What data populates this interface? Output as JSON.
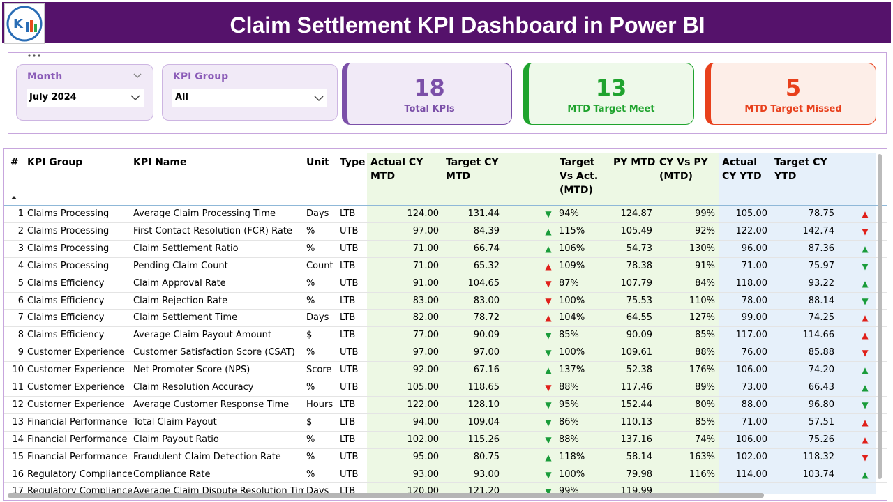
{
  "header": {
    "title": "Claim Settlement KPI Dashboard in Power BI"
  },
  "slicers": [
    {
      "label": "Month",
      "value": "July 2024"
    },
    {
      "label": "KPI Group",
      "value": "All"
    }
  ],
  "cards": [
    {
      "value": "18",
      "label": "Total KPIs",
      "color": "#7b4fa8"
    },
    {
      "value": "13",
      "label": "MTD Target Meet",
      "color": "#1fa32e"
    },
    {
      "value": "5",
      "label": "MTD Target Missed",
      "color": "#e8401c"
    }
  ],
  "table": {
    "columns": [
      "#",
      "KPI Group",
      "KPI Name",
      "Unit",
      "Type",
      "Actual CY MTD",
      "Target CY MTD",
      "Target Vs Act. (MTD)",
      "PY MTD",
      "CY Vs PY (MTD)",
      "Actual CY YTD",
      "Target CY YTD"
    ],
    "rows": [
      [
        "1",
        "Claims Processing",
        "Average Claim Processing Time",
        "Days",
        "LTB",
        "124.00",
        "131.44",
        "▼",
        "94%",
        "124.87",
        "99%",
        "105.00",
        "78.75",
        "▲"
      ],
      [
        "2",
        "Claims Processing",
        "First Contact Resolution (FCR) Rate",
        "%",
        "UTB",
        "97.00",
        "84.39",
        "▲",
        "115%",
        "105.49",
        "92%",
        "122.00",
        "142.74",
        "▼"
      ],
      [
        "3",
        "Claims Processing",
        "Claim Settlement Ratio",
        "%",
        "UTB",
        "71.00",
        "66.74",
        "▲",
        "106%",
        "54.73",
        "130%",
        "96.00",
        "87.36",
        "▲"
      ],
      [
        "4",
        "Claims Processing",
        "Pending Claim Count",
        "Count",
        "LTB",
        "71.00",
        "65.32",
        "▲",
        "109%",
        "78.38",
        "91%",
        "71.00",
        "75.97",
        "▼"
      ],
      [
        "5",
        "Claims Efficiency",
        "Claim Approval Rate",
        "%",
        "UTB",
        "91.00",
        "104.65",
        "▼",
        "87%",
        "107.79",
        "84%",
        "118.00",
        "93.22",
        "▲"
      ],
      [
        "6",
        "Claims Efficiency",
        "Claim Rejection Rate",
        "%",
        "LTB",
        "83.00",
        "83.00",
        "▼",
        "100%",
        "75.53",
        "110%",
        "78.00",
        "88.14",
        "▼"
      ],
      [
        "7",
        "Claims Efficiency",
        "Claim Settlement Time",
        "Days",
        "LTB",
        "82.00",
        "78.72",
        "▲",
        "104%",
        "64.55",
        "127%",
        "99.00",
        "74.25",
        "▲"
      ],
      [
        "8",
        "Claims Efficiency",
        "Average Claim Payout Amount",
        "$",
        "LTB",
        "77.00",
        "90.09",
        "▼",
        "85%",
        "90.09",
        "85%",
        "117.00",
        "114.66",
        "▲"
      ],
      [
        "9",
        "Customer Experience",
        "Customer Satisfaction Score (CSAT)",
        "%",
        "UTB",
        "97.00",
        "97.00",
        "▼",
        "100%",
        "109.61",
        "88%",
        "76.00",
        "85.88",
        "▼"
      ],
      [
        "10",
        "Customer Experience",
        "Net Promoter Score (NPS)",
        "Score",
        "UTB",
        "92.00",
        "67.16",
        "▲",
        "137%",
        "52.38",
        "176%",
        "106.00",
        "74.20",
        "▲"
      ],
      [
        "11",
        "Customer Experience",
        "Claim Resolution Accuracy",
        "%",
        "UTB",
        "105.00",
        "118.65",
        "▼",
        "88%",
        "117.46",
        "89%",
        "73.00",
        "66.43",
        "▲"
      ],
      [
        "12",
        "Customer Experience",
        "Average Customer Response Time",
        "Hours",
        "LTB",
        "122.00",
        "128.10",
        "▼",
        "95%",
        "152.44",
        "80%",
        "88.00",
        "96.80",
        "▼"
      ],
      [
        "13",
        "Financial Performance",
        "Total Claim Payout",
        "$",
        "LTB",
        "94.00",
        "109.04",
        "▼",
        "86%",
        "110.13",
        "85%",
        "71.00",
        "57.51",
        "▲"
      ],
      [
        "14",
        "Financial Performance",
        "Claim Payout Ratio",
        "%",
        "LTB",
        "102.00",
        "115.26",
        "▼",
        "88%",
        "137.16",
        "74%",
        "106.00",
        "75.26",
        "▲"
      ],
      [
        "15",
        "Financial Performance",
        "Fraudulent Claim Detection Rate",
        "%",
        "UTB",
        "95.00",
        "80.75",
        "▲",
        "118%",
        "58.14",
        "163%",
        "102.00",
        "118.32",
        "▼"
      ],
      [
        "16",
        "Regulatory Compliance",
        "Compliance Rate",
        "%",
        "UTB",
        "93.00",
        "93.00",
        "▼",
        "100%",
        "79.98",
        "116%",
        "114.00",
        "103.74",
        "▲"
      ],
      [
        "17",
        "Regulatory Compliance",
        "Average Claim Dispute Resolution Time",
        "Days",
        "LTB",
        "120.00",
        "121.20",
        "▼",
        "99%",
        "119.99"
      ]
    ],
    "icon_colors": [
      [
        "#1a9c3a",
        "#e0201a"
      ],
      [
        "#1a9c3a",
        "#e0201a"
      ],
      [
        "#1a9c3a",
        "#1a9c3a"
      ],
      [
        "#e0201a",
        "#1a9c3a"
      ],
      [
        "#e0201a",
        "#1a9c3a"
      ],
      [
        "#e0201a",
        "#1a9c3a"
      ],
      [
        "#e0201a",
        "#e0201a"
      ],
      [
        "#1a9c3a",
        "#e0201a"
      ],
      [
        "#1a9c3a",
        "#e0201a"
      ],
      [
        "#1a9c3a",
        "#1a9c3a"
      ],
      [
        "#e0201a",
        "#1a9c3a"
      ],
      [
        "#1a9c3a",
        "#1a9c3a"
      ],
      [
        "#1a9c3a",
        "#e0201a"
      ],
      [
        "#1a9c3a",
        "#e0201a"
      ],
      [
        "#1a9c3a",
        "#e0201a"
      ],
      [
        "#1a9c3a",
        "#1a9c3a"
      ],
      [
        "#1a9c3a",
        "#1a9c3a"
      ]
    ]
  }
}
